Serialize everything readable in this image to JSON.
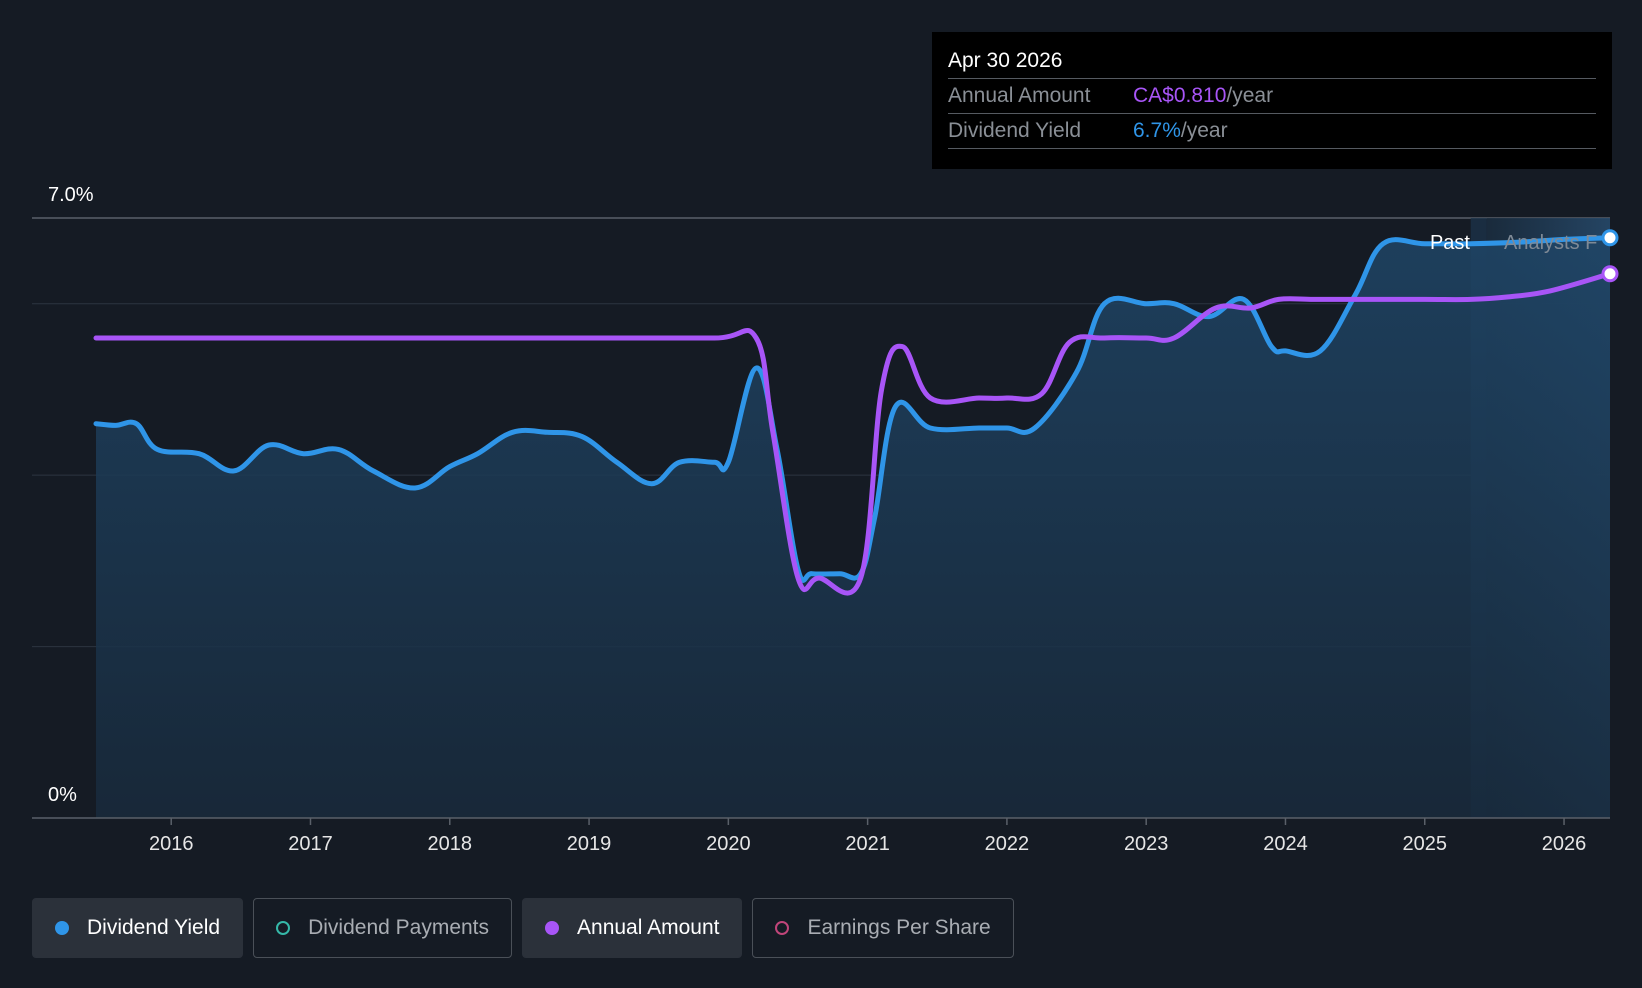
{
  "chart_data": {
    "type": "line",
    "ylabel_top": "7.0%",
    "ylabel_bottom": "0%",
    "ylim": [
      0,
      7.0
    ],
    "xlim": [
      2015.46,
      2026.33
    ],
    "x_ticks": [
      "2016",
      "2017",
      "2018",
      "2019",
      "2020",
      "2021",
      "2022",
      "2023",
      "2024",
      "2025",
      "2026"
    ],
    "past_boundary": 2025.33,
    "region_labels": {
      "past": "Past",
      "forecast": "Analysts F"
    },
    "series": [
      {
        "name": "Dividend Yield",
        "color": "#2f95e8",
        "filled": true,
        "points": [
          [
            2015.46,
            4.6
          ],
          [
            2015.6,
            4.58
          ],
          [
            2015.75,
            4.6
          ],
          [
            2015.9,
            4.3
          ],
          [
            2016.2,
            4.25
          ],
          [
            2016.45,
            4.05
          ],
          [
            2016.7,
            4.35
          ],
          [
            2016.95,
            4.25
          ],
          [
            2017.2,
            4.3
          ],
          [
            2017.45,
            4.05
          ],
          [
            2017.75,
            3.85
          ],
          [
            2018.0,
            4.1
          ],
          [
            2018.2,
            4.25
          ],
          [
            2018.45,
            4.5
          ],
          [
            2018.7,
            4.5
          ],
          [
            2018.95,
            4.45
          ],
          [
            2019.2,
            4.15
          ],
          [
            2019.45,
            3.9
          ],
          [
            2019.65,
            4.15
          ],
          [
            2019.9,
            4.15
          ],
          [
            2020.0,
            4.15
          ],
          [
            2020.2,
            5.25
          ],
          [
            2020.35,
            4.3
          ],
          [
            2020.5,
            2.9
          ],
          [
            2020.6,
            2.85
          ],
          [
            2020.8,
            2.85
          ],
          [
            2020.95,
            2.85
          ],
          [
            2021.05,
            3.5
          ],
          [
            2021.2,
            4.8
          ],
          [
            2021.45,
            4.55
          ],
          [
            2021.8,
            4.55
          ],
          [
            2022.0,
            4.55
          ],
          [
            2022.2,
            4.55
          ],
          [
            2022.5,
            5.2
          ],
          [
            2022.7,
            6.0
          ],
          [
            2023.0,
            6.0
          ],
          [
            2023.2,
            6.0
          ],
          [
            2023.45,
            5.85
          ],
          [
            2023.7,
            6.05
          ],
          [
            2023.9,
            5.5
          ],
          [
            2024.0,
            5.45
          ],
          [
            2024.25,
            5.45
          ],
          [
            2024.5,
            6.1
          ],
          [
            2024.7,
            6.7
          ],
          [
            2025.0,
            6.7
          ],
          [
            2025.33,
            6.7
          ],
          [
            2025.7,
            6.72
          ],
          [
            2026.0,
            6.75
          ],
          [
            2026.33,
            6.77
          ]
        ]
      },
      {
        "name": "Annual Amount",
        "color": "#a855f7",
        "filled": false,
        "points": [
          [
            2015.46,
            5.6
          ],
          [
            2016.0,
            5.6
          ],
          [
            2017.0,
            5.6
          ],
          [
            2018.0,
            5.6
          ],
          [
            2019.0,
            5.6
          ],
          [
            2019.9,
            5.6
          ],
          [
            2020.2,
            5.6
          ],
          [
            2020.32,
            4.5
          ],
          [
            2020.5,
            2.8
          ],
          [
            2020.65,
            2.8
          ],
          [
            2020.95,
            2.8
          ],
          [
            2021.1,
            5.0
          ],
          [
            2021.25,
            5.5
          ],
          [
            2021.45,
            4.9
          ],
          [
            2021.8,
            4.9
          ],
          [
            2022.0,
            4.9
          ],
          [
            2022.25,
            4.95
          ],
          [
            2022.45,
            5.55
          ],
          [
            2022.7,
            5.6
          ],
          [
            2023.0,
            5.6
          ],
          [
            2023.2,
            5.6
          ],
          [
            2023.5,
            5.95
          ],
          [
            2023.75,
            5.95
          ],
          [
            2023.95,
            6.05
          ],
          [
            2024.2,
            6.05
          ],
          [
            2024.5,
            6.05
          ],
          [
            2025.0,
            6.05
          ],
          [
            2025.33,
            6.05
          ],
          [
            2025.6,
            6.08
          ],
          [
            2025.9,
            6.15
          ],
          [
            2026.33,
            6.35
          ]
        ]
      }
    ]
  },
  "tooltip": {
    "date": "Apr 30 2026",
    "rows": [
      {
        "label": "Annual Amount",
        "value": "CA$0.810",
        "unit": "/year",
        "color": "#a855f7"
      },
      {
        "label": "Dividend Yield",
        "value": "6.7%",
        "unit": "/year",
        "color": "#2f95e8"
      }
    ]
  },
  "legend": [
    {
      "label": "Dividend Yield",
      "active": true,
      "dot": "filled",
      "color": "#2f95e8"
    },
    {
      "label": "Dividend Payments",
      "active": false,
      "dot": "hollow",
      "color": "#35b8a8"
    },
    {
      "label": "Annual Amount",
      "active": true,
      "dot": "filled",
      "color": "#a855f7"
    },
    {
      "label": "Earnings Per Share",
      "active": false,
      "dot": "hollow",
      "color": "#c0457a"
    }
  ]
}
